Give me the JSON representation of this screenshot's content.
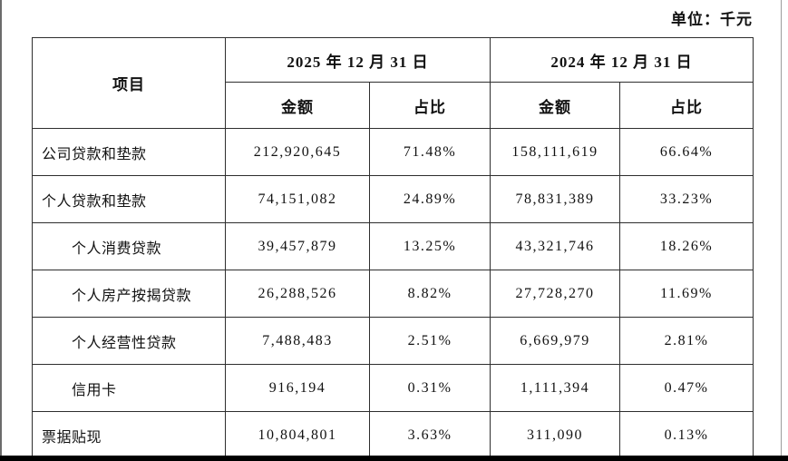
{
  "page": {
    "unit_label": "单位：千元",
    "background_color": "#ffffff",
    "text_color": "#111111",
    "table_border_color": "#2e2e2e",
    "bottom_bar_color": "#000000"
  },
  "table": {
    "header": {
      "item_col": "项目",
      "period_2025": "2025 年 12 月 31 日",
      "period_2024": "2024 年 12 月 31 日",
      "amount_label": "金额",
      "ratio_label": "占比"
    },
    "rows": [
      {
        "item": "公司贷款和垫款",
        "indent": false,
        "amount_2025": "212,920,645",
        "ratio_2025": "71.48%",
        "amount_2024": "158,111,619",
        "ratio_2024": "66.64%"
      },
      {
        "item": "个人贷款和垫款",
        "indent": false,
        "amount_2025": "74,151,082",
        "ratio_2025": "24.89%",
        "amount_2024": "78,831,389",
        "ratio_2024": "33.23%"
      },
      {
        "item": "个人消费贷款",
        "indent": true,
        "amount_2025": "39,457,879",
        "ratio_2025": "13.25%",
        "amount_2024": "43,321,746",
        "ratio_2024": "18.26%"
      },
      {
        "item": "个人房产按揭贷款",
        "indent": true,
        "amount_2025": "26,288,526",
        "ratio_2025": "8.82%",
        "amount_2024": "27,728,270",
        "ratio_2024": "11.69%"
      },
      {
        "item": "个人经营性贷款",
        "indent": true,
        "amount_2025": "7,488,483",
        "ratio_2025": "2.51%",
        "amount_2024": "6,669,979",
        "ratio_2024": "2.81%"
      },
      {
        "item": "信用卡",
        "indent": true,
        "amount_2025": "916,194",
        "ratio_2025": "0.31%",
        "amount_2024": "1,111,394",
        "ratio_2024": "0.47%"
      },
      {
        "item": "票据贴现",
        "indent": false,
        "amount_2025": "10,804,801",
        "ratio_2025": "3.63%",
        "amount_2024": "311,090",
        "ratio_2024": "0.13%"
      }
    ]
  }
}
